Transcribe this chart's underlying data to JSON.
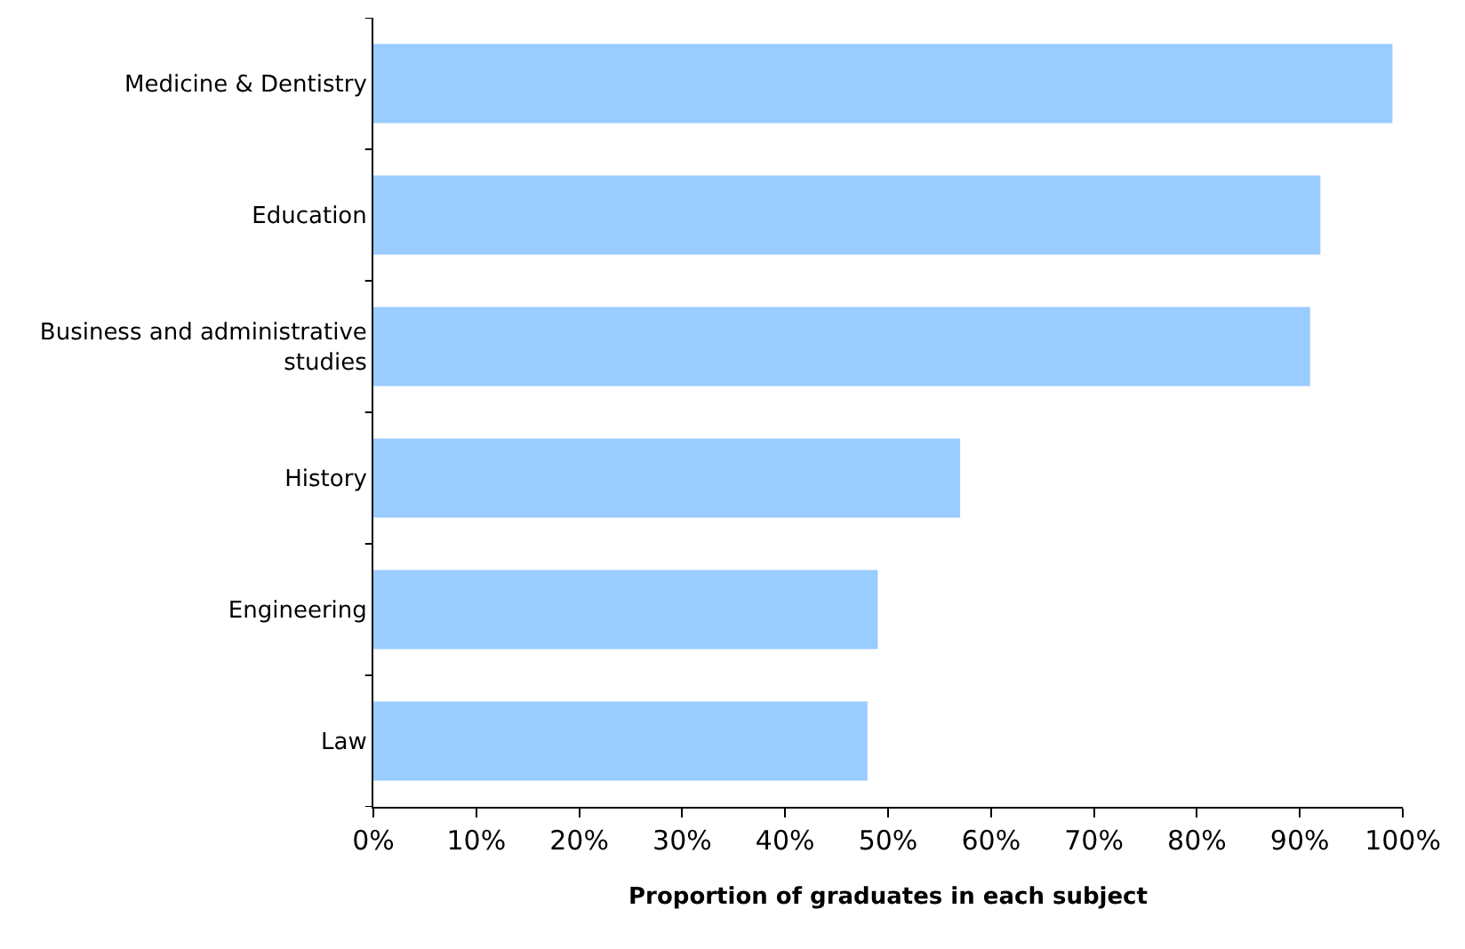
{
  "chart_data": {
    "type": "bar",
    "orientation": "horizontal",
    "xlabel": "Proportion of graduates in each subject",
    "categories": [
      "Medicine & Dentistry",
      "Education",
      "Business and administrative studies",
      "History",
      "Engineering",
      "Law"
    ],
    "values": [
      99,
      92,
      91,
      57,
      49,
      48
    ],
    "color": "#99ccff",
    "xlim": [
      0,
      100
    ],
    "xticks": [
      {
        "value": 0,
        "label": "0%"
      },
      {
        "value": 10,
        "label": "10%"
      },
      {
        "value": 20,
        "label": "20%"
      },
      {
        "value": 30,
        "label": "30%"
      },
      {
        "value": 40,
        "label": "40%"
      },
      {
        "value": 50,
        "label": "50%"
      },
      {
        "value": 60,
        "label": "60%"
      },
      {
        "value": 70,
        "label": "70%"
      },
      {
        "value": 80,
        "label": "80%"
      },
      {
        "value": 90,
        "label": "90%"
      },
      {
        "value": 100,
        "label": "100%"
      }
    ]
  }
}
